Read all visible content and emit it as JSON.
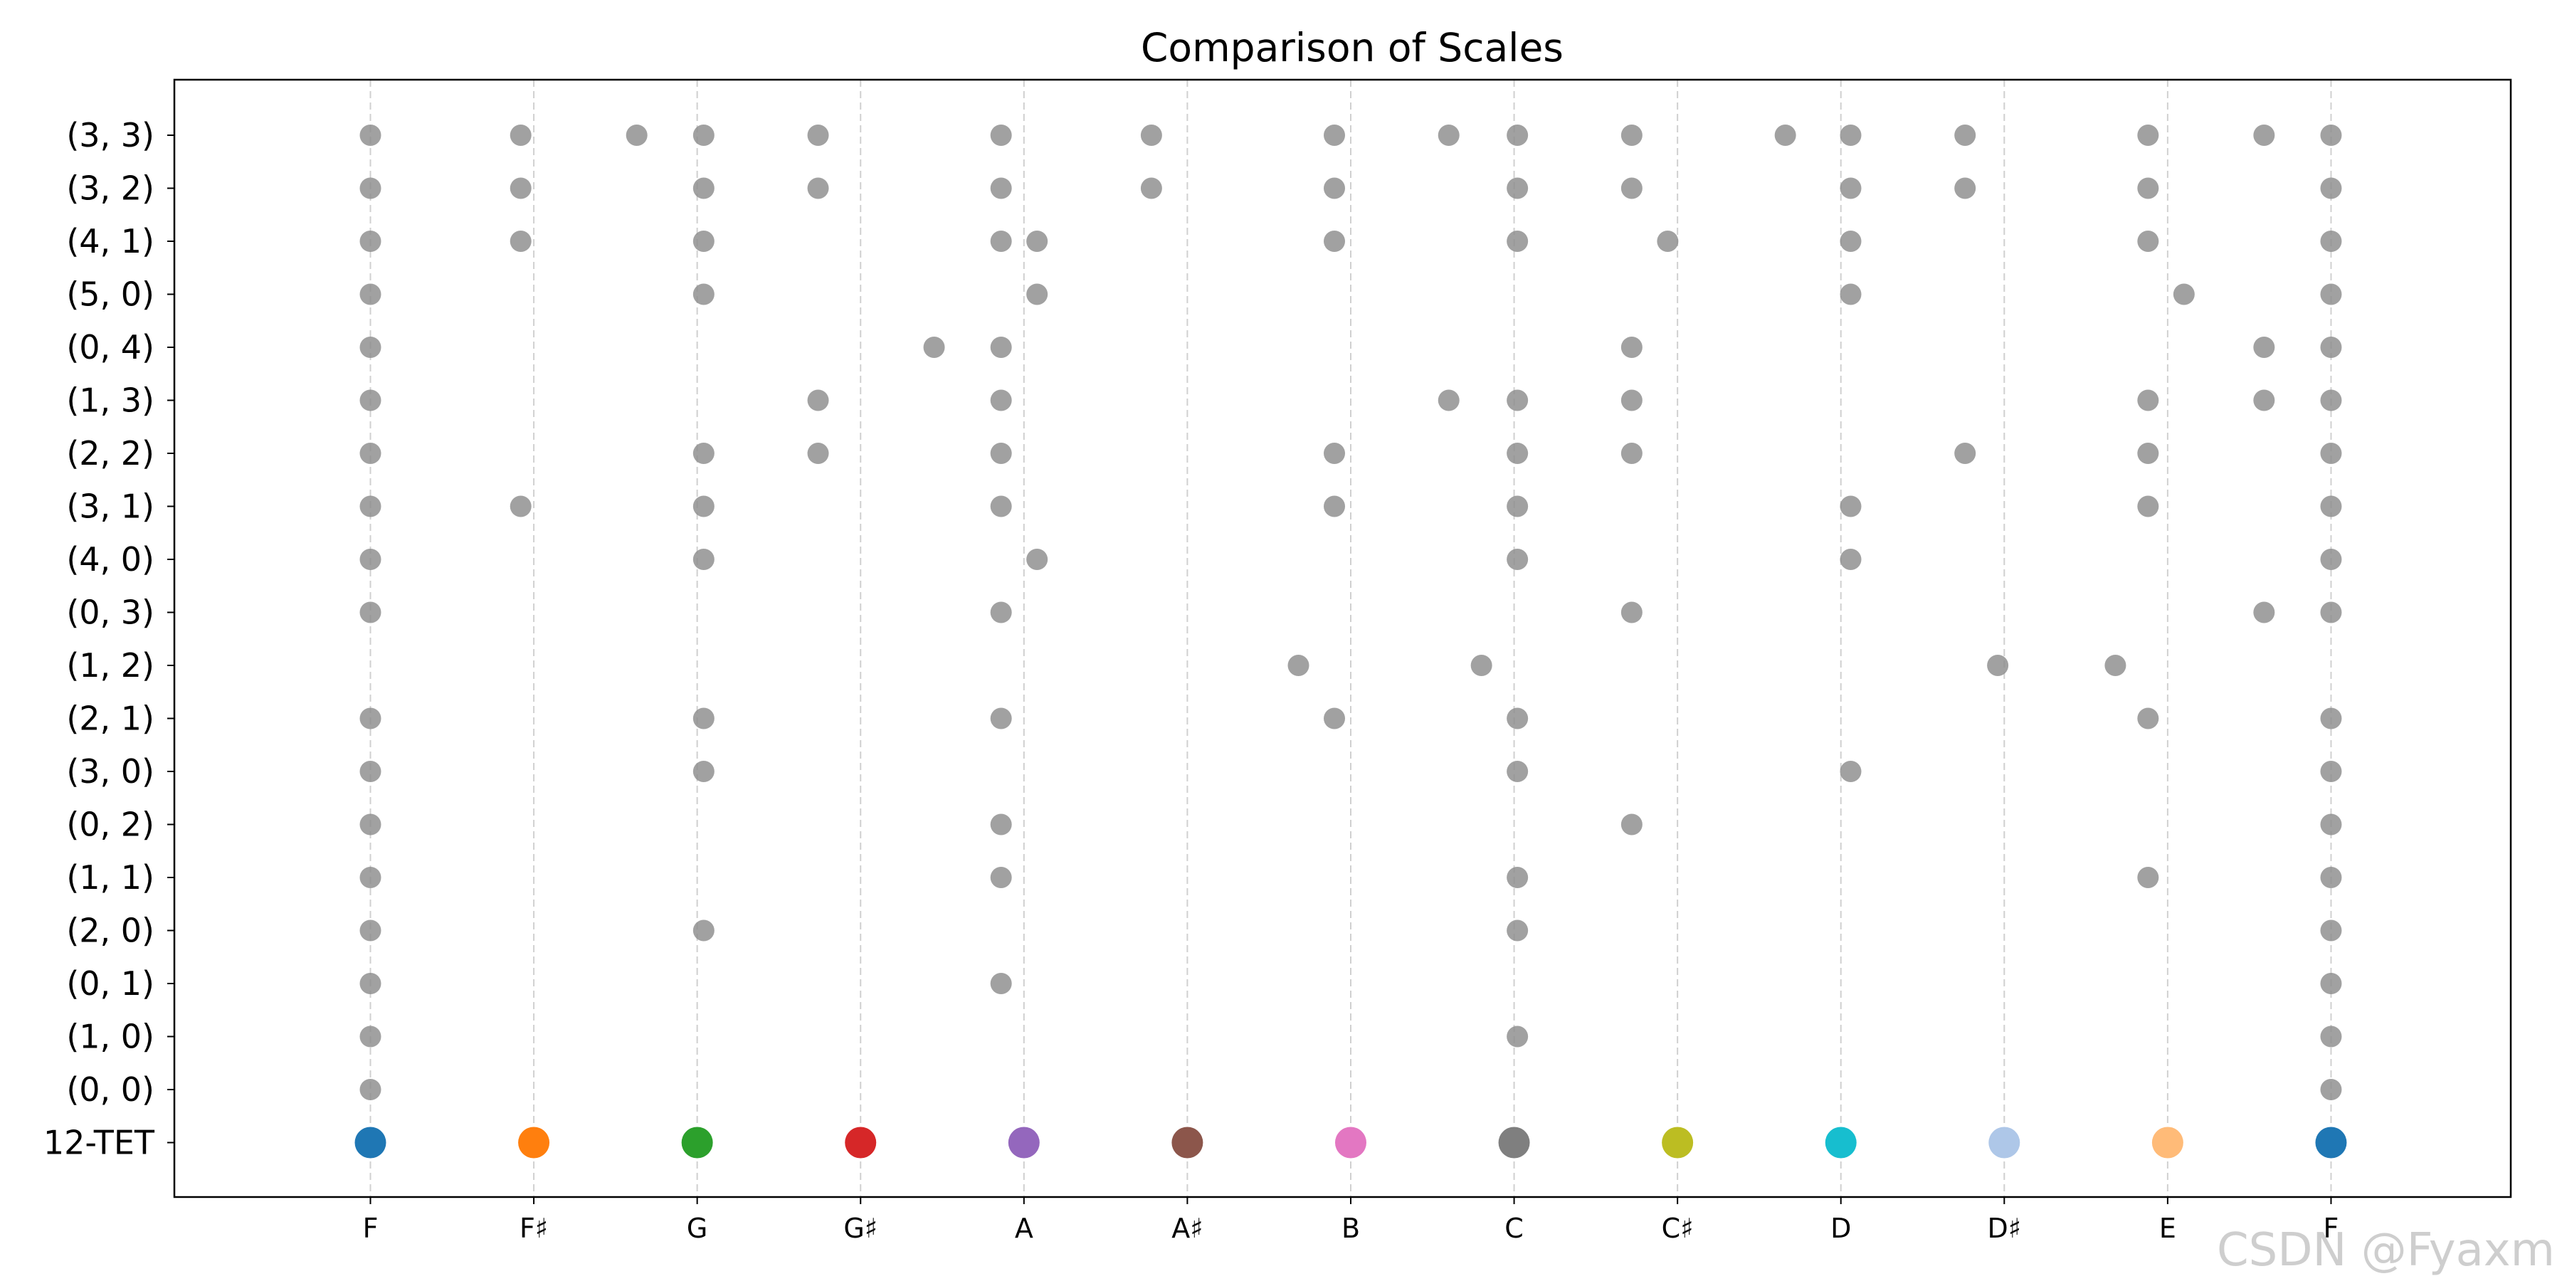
{
  "chart_data": {
    "type": "scatter",
    "title": "Comparison of Scales",
    "xlabel": "",
    "ylabel": "",
    "grid": "x-only dashed",
    "x_unit": "semitones above F",
    "xlim": [
      -1.2,
      13.1
    ],
    "x_ticks": [
      {
        "value": 0,
        "label": "F"
      },
      {
        "value": 1,
        "label": "F♯"
      },
      {
        "value": 2,
        "label": "G"
      },
      {
        "value": 3,
        "label": "G♯"
      },
      {
        "value": 4,
        "label": "A"
      },
      {
        "value": 5,
        "label": "A♯"
      },
      {
        "value": 6,
        "label": "B"
      },
      {
        "value": 7,
        "label": "C"
      },
      {
        "value": 8,
        "label": "C♯"
      },
      {
        "value": 9,
        "label": "D"
      },
      {
        "value": 10,
        "label": "D♯"
      },
      {
        "value": 11,
        "label": "E"
      },
      {
        "value": 12,
        "label": "F"
      }
    ],
    "rows": [
      {
        "label": "12-TET",
        "points": [
          0,
          1,
          2,
          3,
          4,
          5,
          6,
          7,
          8,
          9,
          10,
          11,
          12
        ],
        "colors": [
          "#1f77b4",
          "#ff7f0e",
          "#2ca02c",
          "#d62728",
          "#9467bd",
          "#8c564b",
          "#e377c2",
          "#7f7f7f",
          "#bcbd22",
          "#17becf",
          "#aec7e8",
          "#ffbb78",
          "#1f77b4"
        ]
      },
      {
        "label": "(0, 0)",
        "points": [
          0,
          12
        ]
      },
      {
        "label": "(1, 0)",
        "points": [
          0,
          7.02,
          12
        ]
      },
      {
        "label": "(0, 1)",
        "points": [
          0,
          3.86,
          12
        ]
      },
      {
        "label": "(2, 0)",
        "points": [
          0,
          2.04,
          7.02,
          12
        ]
      },
      {
        "label": "(1, 1)",
        "points": [
          0,
          3.86,
          7.02,
          10.88,
          12
        ]
      },
      {
        "label": "(0, 2)",
        "points": [
          0,
          3.86,
          7.72,
          12
        ]
      },
      {
        "label": "(3, 0)",
        "points": [
          0,
          2.04,
          7.02,
          9.06,
          12
        ]
      },
      {
        "label": "(2, 1)",
        "points": [
          0,
          2.04,
          3.86,
          5.9,
          7.02,
          10.88,
          12
        ]
      },
      {
        "label": "(1, 2)",
        "points": [
          5.68,
          6.8,
          9.96,
          10.68
        ]
      },
      {
        "label": "(0, 3)",
        "points": [
          0,
          3.86,
          7.72,
          11.59,
          12
        ]
      },
      {
        "label": "(4, 0)",
        "points": [
          0,
          2.04,
          4.08,
          7.02,
          9.06,
          12
        ]
      },
      {
        "label": "(3, 1)",
        "points": [
          0,
          0.92,
          2.04,
          3.86,
          5.9,
          7.02,
          9.06,
          10.88,
          12
        ]
      },
      {
        "label": "(2, 2)",
        "points": [
          0,
          2.04,
          2.74,
          3.86,
          5.9,
          7.02,
          7.72,
          9.76,
          10.88,
          12
        ]
      },
      {
        "label": "(1, 3)",
        "points": [
          0,
          2.74,
          3.86,
          6.6,
          7.02,
          7.72,
          10.88,
          11.59,
          12
        ]
      },
      {
        "label": "(0, 4)",
        "points": [
          0,
          3.45,
          3.86,
          7.72,
          11.59,
          12
        ]
      },
      {
        "label": "(5, 0)",
        "points": [
          0,
          2.04,
          4.08,
          9.06,
          11.1,
          12
        ]
      },
      {
        "label": "(4, 1)",
        "points": [
          0,
          0.92,
          2.04,
          3.86,
          4.08,
          5.9,
          7.02,
          7.94,
          9.06,
          10.88,
          12
        ]
      },
      {
        "label": "(3, 2)",
        "points": [
          0,
          0.92,
          2.04,
          2.74,
          3.86,
          4.78,
          5.9,
          7.02,
          7.72,
          9.06,
          9.76,
          10.88,
          12
        ]
      },
      {
        "label": "(3, 3)",
        "points": [
          0,
          0.92,
          1.63,
          2.04,
          2.74,
          3.86,
          4.78,
          5.9,
          6.6,
          7.02,
          7.72,
          8.66,
          9.06,
          9.76,
          10.88,
          11.59,
          12
        ]
      }
    ],
    "point_color": "#8c8c8c"
  },
  "watermark": "CSDN @Fyaxm"
}
